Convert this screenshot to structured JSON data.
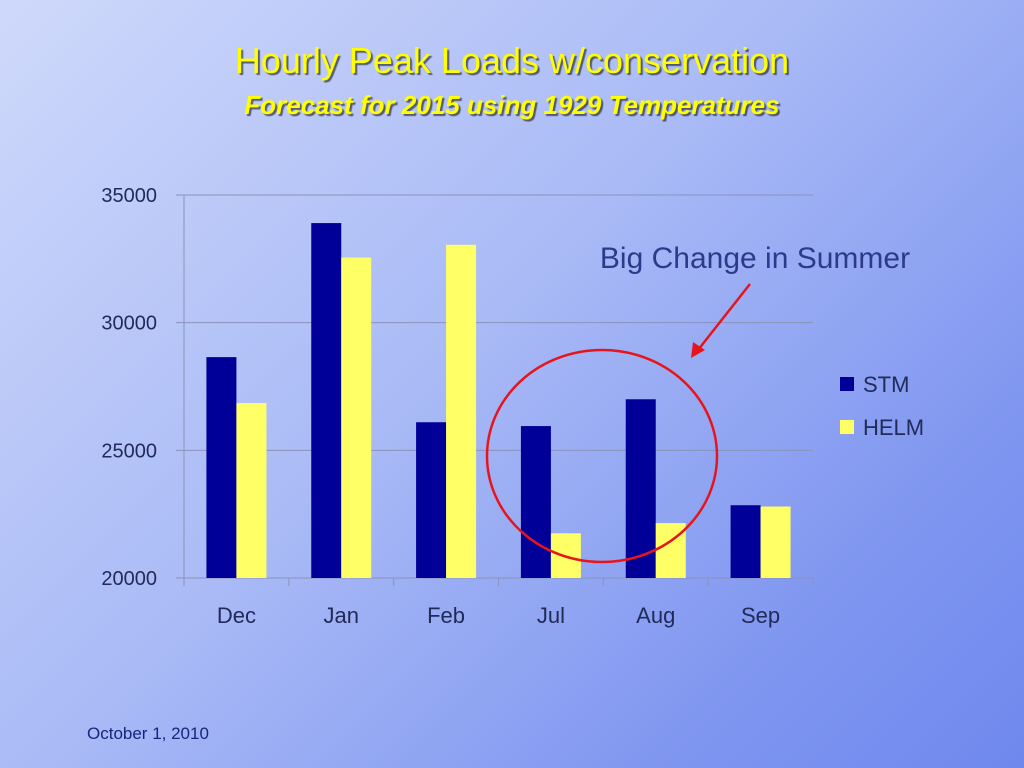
{
  "slide": {
    "footer": "October 1, 2010"
  },
  "colors": {
    "series_1": "#000099",
    "series_2": "#ffff66",
    "annotation": "#e8141b",
    "title": "#ffff00"
  },
  "chart_data": {
    "type": "bar",
    "title": "Hourly Peak Loads w/conservation",
    "subtitle": "Forecast for 2015 using 1929 Temperatures",
    "xlabel": "",
    "ylabel": "",
    "categories": [
      "Dec",
      "Jan",
      "Feb",
      "Jul",
      "Aug",
      "Sep"
    ],
    "series": [
      {
        "name": "STM",
        "values": [
          28650,
          33900,
          26100,
          25950,
          27000,
          22850
        ]
      },
      {
        "name": "HELM",
        "values": [
          26850,
          32550,
          33050,
          21750,
          22150,
          22800
        ]
      }
    ],
    "ylim": [
      20000,
      35000
    ],
    "yticks": [
      20000,
      25000,
      30000,
      35000
    ],
    "grid": true,
    "legend_position": "right",
    "annotation": {
      "text": "Big Change in Summer",
      "highlight": [
        "Jul",
        "Aug"
      ]
    }
  }
}
